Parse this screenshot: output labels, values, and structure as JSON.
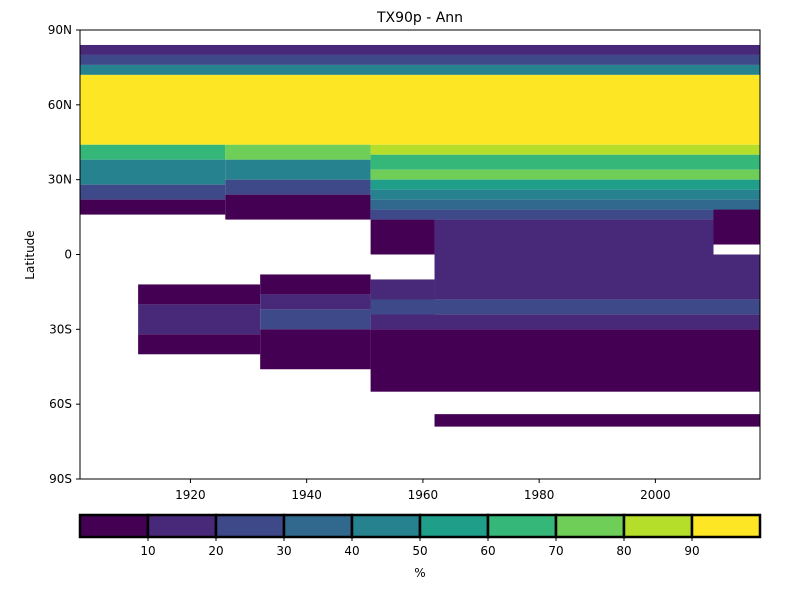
{
  "chart_data": {
    "type": "heatmap",
    "title": "TX90p - Ann",
    "xlabel": "",
    "ylabel": "Latitude",
    "x_range": [
      1901,
      2018
    ],
    "y_range": [
      -90,
      90
    ],
    "x_ticks": [
      1920,
      1940,
      1960,
      1980,
      2000
    ],
    "x_tick_labels": [
      "1920",
      "1940",
      "1960",
      "1980",
      "2000"
    ],
    "y_ticks": [
      90,
      60,
      30,
      0,
      -30,
      -60,
      -90
    ],
    "y_tick_labels": [
      "90N",
      "60N",
      "30N",
      "0",
      "30S",
      "60S",
      "90S"
    ],
    "grid": false,
    "colorbar": {
      "label": "%",
      "colors": [
        "#440154",
        "#482878",
        "#3e4989",
        "#31688e",
        "#26828e",
        "#1f9e89",
        "#35b779",
        "#6ece58",
        "#b5de2b",
        "#fde725"
      ],
      "boundaries": [
        0,
        10,
        20,
        30,
        40,
        50,
        60,
        70,
        80,
        90,
        100
      ],
      "ticks": [
        10,
        20,
        30,
        40,
        50,
        60,
        70,
        80,
        90
      ],
      "tick_labels": [
        "10",
        "20",
        "30",
        "40",
        "50",
        "60",
        "70",
        "80",
        "90"
      ]
    },
    "cells": [
      {
        "x0": 1901,
        "x1": 2018,
        "lat0": 80,
        "lat1": 84,
        "value": 15
      },
      {
        "x0": 1901,
        "x1": 2018,
        "lat0": 76,
        "lat1": 80,
        "value": 25
      },
      {
        "x0": 1901,
        "x1": 2018,
        "lat0": 72,
        "lat1": 76,
        "value": 45
      },
      {
        "x0": 1901,
        "x1": 2018,
        "lat0": 44,
        "lat1": 72,
        "value": 95
      },
      {
        "x0": 1901,
        "x1": 1926,
        "lat0": 38,
        "lat1": 44,
        "value": 65
      },
      {
        "x0": 1901,
        "x1": 1926,
        "lat0": 28,
        "lat1": 38,
        "value": 45
      },
      {
        "x0": 1901,
        "x1": 1926,
        "lat0": 22,
        "lat1": 28,
        "value": 25
      },
      {
        "x0": 1901,
        "x1": 1926,
        "lat0": 16,
        "lat1": 22,
        "value": 5
      },
      {
        "x0": 1926,
        "x1": 1951,
        "lat0": 38,
        "lat1": 44,
        "value": 75
      },
      {
        "x0": 1926,
        "x1": 1951,
        "lat0": 30,
        "lat1": 38,
        "value": 45
      },
      {
        "x0": 1926,
        "x1": 1951,
        "lat0": 24,
        "lat1": 30,
        "value": 25
      },
      {
        "x0": 1926,
        "x1": 1951,
        "lat0": 14,
        "lat1": 24,
        "value": 5
      },
      {
        "x0": 1951,
        "x1": 2018,
        "lat0": 40,
        "lat1": 44,
        "value": 85
      },
      {
        "x0": 1951,
        "x1": 2018,
        "lat0": 34,
        "lat1": 40,
        "value": 65
      },
      {
        "x0": 1951,
        "x1": 2018,
        "lat0": 30,
        "lat1": 34,
        "value": 75
      },
      {
        "x0": 1951,
        "x1": 2018,
        "lat0": 26,
        "lat1": 30,
        "value": 55
      },
      {
        "x0": 1951,
        "x1": 2018,
        "lat0": 22,
        "lat1": 26,
        "value": 45
      },
      {
        "x0": 1951,
        "x1": 2018,
        "lat0": 18,
        "lat1": 22,
        "value": 35
      },
      {
        "x0": 1951,
        "x1": 2018,
        "lat0": 14,
        "lat1": 18,
        "value": 25
      },
      {
        "x0": 1951,
        "x1": 1962,
        "lat0": 0,
        "lat1": 14,
        "value": 5
      },
      {
        "x0": 1962,
        "x1": 2010,
        "lat0": 0,
        "lat1": 14,
        "value": 15
      },
      {
        "x0": 2010,
        "x1": 2018,
        "lat0": 4,
        "lat1": 18,
        "value": 5
      },
      {
        "x0": 1962,
        "x1": 2018,
        "lat0": -18,
        "lat1": 0,
        "value": 15
      },
      {
        "x0": 1911,
        "x1": 1932,
        "lat0": -20,
        "lat1": -12,
        "value": 5
      },
      {
        "x0": 1911,
        "x1": 1932,
        "lat0": -32,
        "lat1": -20,
        "value": 15
      },
      {
        "x0": 1911,
        "x1": 1932,
        "lat0": -40,
        "lat1": -32,
        "value": 5
      },
      {
        "x0": 1932,
        "x1": 1951,
        "lat0": -16,
        "lat1": -8,
        "value": 5
      },
      {
        "x0": 1932,
        "x1": 1951,
        "lat0": -22,
        "lat1": -16,
        "value": 15
      },
      {
        "x0": 1932,
        "x1": 1951,
        "lat0": -30,
        "lat1": -22,
        "value": 25
      },
      {
        "x0": 1932,
        "x1": 1951,
        "lat0": -46,
        "lat1": -30,
        "value": 5
      },
      {
        "x0": 1951,
        "x1": 1962,
        "lat0": -24,
        "lat1": -10,
        "value": 15
      },
      {
        "x0": 1951,
        "x1": 2018,
        "lat0": -18,
        "lat1": -24,
        "value": 25
      },
      {
        "x0": 1951,
        "x1": 2018,
        "lat0": -24,
        "lat1": -30,
        "value": 15
      },
      {
        "x0": 1951,
        "x1": 2018,
        "lat0": -30,
        "lat1": -55,
        "value": 5
      },
      {
        "x0": 1962,
        "x1": 2018,
        "lat0": -64,
        "lat1": -69,
        "value": 5
      }
    ]
  }
}
